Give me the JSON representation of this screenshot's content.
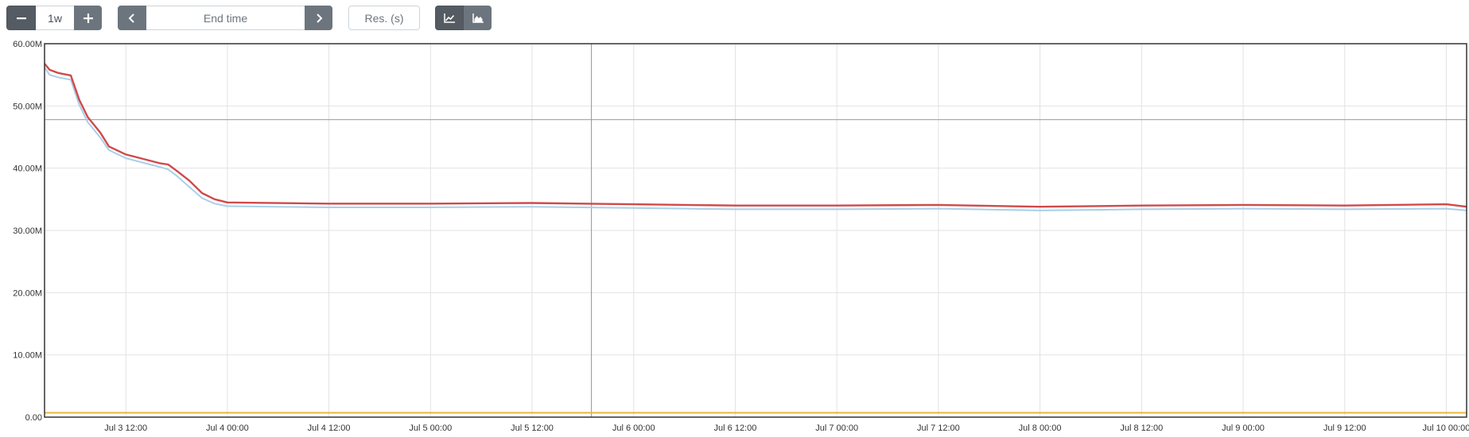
{
  "toolbar": {
    "range_value": "1w",
    "end_time_placeholder": "End time",
    "resolution_placeholder": "Res. (s)",
    "icons": {
      "range_minus": "minus-icon",
      "range_plus": "plus-icon",
      "time_prev": "chevron-left-icon",
      "time_next": "chevron-right-icon",
      "stacked_off": "line-chart-icon",
      "stacked_on": "area-chart-icon"
    },
    "stacked_mode": "off"
  },
  "chart_data": {
    "type": "line",
    "x_unit": "hours",
    "x_tick_labels": [
      "Jul 3 12:00",
      "Jul 4 00:00",
      "Jul 4 12:00",
      "Jul 5 00:00",
      "Jul 5 12:00",
      "Jul 6 00:00",
      "Jul 6 12:00",
      "Jul 7 00:00",
      "Jul 7 12:00",
      "Jul 8 00:00",
      "Jul 8 12:00",
      "Jul 9 00:00",
      "Jul 9 12:00",
      "Jul 10 00:00"
    ],
    "y_tick_labels": [
      "0.00",
      "10.00M",
      "20.00M",
      "30.00M",
      "40.00M",
      "50.00M",
      "60.00M"
    ],
    "ylim": [
      0,
      60000000
    ],
    "xlim": [
      "Jul 3 02:24",
      "Jul 10 02:24"
    ],
    "grid": true,
    "legend": "none",
    "series": [
      {
        "color": "#d04a4a",
        "points": [
          [
            "Jul 3 02:24",
            56800000
          ],
          [
            "Jul 3 03:00",
            55800000
          ],
          [
            "Jul 3 04:00",
            55300000
          ],
          [
            "Jul 3 05:30",
            54900000
          ],
          [
            "Jul 3 06:30",
            51000000
          ],
          [
            "Jul 3 07:30",
            48200000
          ],
          [
            "Jul 3 09:00",
            45700000
          ],
          [
            "Jul 3 10:00",
            43500000
          ],
          [
            "Jul 3 12:00",
            42200000
          ],
          [
            "Jul 3 14:00",
            41500000
          ],
          [
            "Jul 3 16:00",
            40800000
          ],
          [
            "Jul 3 17:00",
            40600000
          ],
          [
            "Jul 3 18:00",
            39600000
          ],
          [
            "Jul 3 19:30",
            38000000
          ],
          [
            "Jul 3 21:00",
            36000000
          ],
          [
            "Jul 3 22:30",
            35000000
          ],
          [
            "Jul 4 00:00",
            34500000
          ],
          [
            "Jul 4 12:00",
            34300000
          ],
          [
            "Jul 5 00:00",
            34300000
          ],
          [
            "Jul 5 12:00",
            34400000
          ],
          [
            "Jul 6 00:00",
            34200000
          ],
          [
            "Jul 6 12:00",
            34000000
          ],
          [
            "Jul 7 00:00",
            34000000
          ],
          [
            "Jul 7 12:00",
            34100000
          ],
          [
            "Jul 8 00:00",
            33800000
          ],
          [
            "Jul 8 12:00",
            34000000
          ],
          [
            "Jul 9 00:00",
            34100000
          ],
          [
            "Jul 9 12:00",
            34000000
          ],
          [
            "Jul 10 00:00",
            34200000
          ],
          [
            "Jul 10 02:24",
            33800000
          ]
        ]
      },
      {
        "color": "#a9cfe8",
        "points": [
          [
            "Jul 3 02:24",
            56200000
          ],
          [
            "Jul 3 03:00",
            55000000
          ],
          [
            "Jul 3 04:00",
            54600000
          ],
          [
            "Jul 3 05:30",
            54200000
          ],
          [
            "Jul 3 06:30",
            50200000
          ],
          [
            "Jul 3 07:30",
            47400000
          ],
          [
            "Jul 3 09:00",
            44900000
          ],
          [
            "Jul 3 10:00",
            42900000
          ],
          [
            "Jul 3 12:00",
            41600000
          ],
          [
            "Jul 3 14:00",
            40900000
          ],
          [
            "Jul 3 16:00",
            40200000
          ],
          [
            "Jul 3 17:00",
            39800000
          ],
          [
            "Jul 3 18:00",
            38800000
          ],
          [
            "Jul 3 19:30",
            37000000
          ],
          [
            "Jul 3 21:00",
            35200000
          ],
          [
            "Jul 3 22:30",
            34300000
          ],
          [
            "Jul 4 00:00",
            33900000
          ],
          [
            "Jul 4 12:00",
            33700000
          ],
          [
            "Jul 5 00:00",
            33700000
          ],
          [
            "Jul 5 12:00",
            33800000
          ],
          [
            "Jul 6 00:00",
            33600000
          ],
          [
            "Jul 6 12:00",
            33400000
          ],
          [
            "Jul 7 00:00",
            33400000
          ],
          [
            "Jul 7 12:00",
            33500000
          ],
          [
            "Jul 8 00:00",
            33200000
          ],
          [
            "Jul 8 12:00",
            33400000
          ],
          [
            "Jul 9 00:00",
            33500000
          ],
          [
            "Jul 9 12:00",
            33400000
          ],
          [
            "Jul 10 00:00",
            33500000
          ],
          [
            "Jul 10 02:24",
            33200000
          ]
        ]
      },
      {
        "color": "#e8b53e",
        "points": [
          [
            "Jul 3 02:24",
            700000
          ],
          [
            "Jul 10 02:24",
            700000
          ]
        ]
      }
    ],
    "hover_crosshair": {
      "x": "Jul 5 19:00",
      "y": 47800000
    }
  }
}
